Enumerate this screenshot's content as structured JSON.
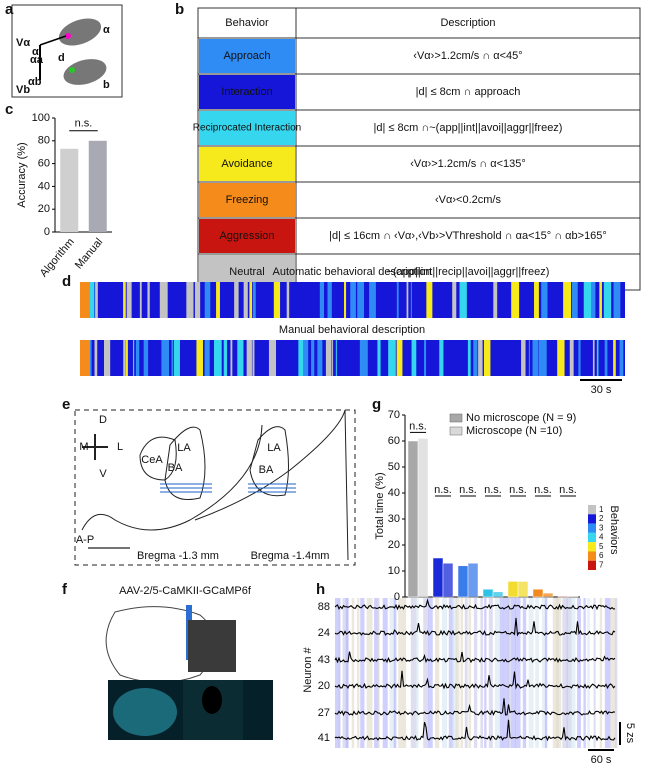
{
  "panel_labels": [
    "a",
    "b",
    "c",
    "d",
    "e",
    "f",
    "g",
    "h"
  ],
  "panel_a": {
    "labels": [
      "Vα",
      "α",
      "αa",
      "αb",
      "d",
      "Vb",
      "b"
    ]
  },
  "table": {
    "header": [
      "Behavior",
      "Description"
    ],
    "rows": [
      [
        "Approach",
        "‹Vα›>1.2cm/s ∩ α<45°"
      ],
      [
        "Interaction",
        "|d| ≤ 8cm ∩ approach"
      ],
      [
        "Reciprocated Interaction",
        "|d| ≤ 8cm ∩~(app||int||avoi||aggr||freez)"
      ],
      [
        "Avoidance",
        "‹Vα›>1.2cm/s ∩ α<135°"
      ],
      [
        "Freezing",
        "‹Vα›<0.2cm/s"
      ],
      [
        "Aggression",
        "|d| ≤ 16cm ∩ ‹Vα›,‹Vb›>VThreshold ∩ αa<15° ∩ αb>165°"
      ],
      [
        "Neutral",
        "~(app||int||recip||avoi||aggr||freez)"
      ]
    ],
    "row_colors": [
      "#2f8cf5",
      "#1616d8",
      "#35d6ee",
      "#f7ea1c",
      "#f58b1a",
      "#c8150f",
      "#c3c3c3"
    ]
  },
  "panel_d": {
    "titles": [
      "Automatic behavioral description",
      "Manual behavioral description"
    ],
    "scale_label": "30 s"
  },
  "panel_e": {
    "labels": [
      "D",
      "V",
      "M",
      "L",
      "CeA",
      "LA",
      "BA",
      "LA",
      "BA",
      "A-P",
      "Bregma -1.3 mm",
      "Bregma -1.4mm"
    ]
  },
  "panel_f": {
    "title": "AAV-2/5-CaMKII-GCaMP6f"
  },
  "panel_h": {
    "ylabel": "Neuron #",
    "neurons": [
      "88",
      "24",
      "43",
      "20",
      "27",
      "41"
    ],
    "scale_y": "5 zs",
    "scale_x": "60 s"
  },
  "chart_data": [
    {
      "type": "bar",
      "ylabel": "Accuracy (%)",
      "categories": [
        "Algorithm",
        "Manual"
      ],
      "values": [
        73,
        80
      ],
      "colors": [
        "#cfcfcf",
        "#a9a9b3"
      ],
      "ylim": [
        0,
        100
      ],
      "yticks": [
        0,
        20,
        40,
        60,
        80,
        100
      ],
      "annotation": "n.s."
    },
    {
      "type": "grouped_bar",
      "ylabel": "Total time (%)",
      "categories": [
        null,
        null,
        null,
        null,
        null,
        null,
        null
      ],
      "series": [
        {
          "name": "No microscope (N = 9)",
          "color": "#a8a8a8",
          "values": [
            60,
            15,
            12,
            3,
            6,
            3,
            0.3
          ]
        },
        {
          "name": "Microscope (N =10)",
          "color": "#d9d9d9",
          "values": [
            61,
            13,
            13,
            2,
            6,
            1.5,
            0.2
          ]
        }
      ],
      "group_colors": [
        "#b0b0b0",
        "#1a2ad8",
        "#3a7ce8",
        "#2ec3e6",
        "#f2dc30",
        "#f08a1c",
        "#c8201a"
      ],
      "ylim": [
        0,
        70
      ],
      "yticks": [
        0,
        10,
        20,
        30,
        40,
        50,
        60,
        70
      ],
      "annotations": [
        "n.s.",
        "n.s.",
        "n.s.",
        "n.s.",
        "n.s.",
        "n.s.",
        "n.s."
      ],
      "colorbar": {
        "label": "Behaviors",
        "ticks": [
          1,
          2,
          3,
          4,
          5,
          6,
          7
        ],
        "colors": [
          "#c3c3c3",
          "#1616d8",
          "#2f8cf5",
          "#35d6ee",
          "#f7ea1c",
          "#f58b1a",
          "#c8150f"
        ]
      }
    }
  ]
}
